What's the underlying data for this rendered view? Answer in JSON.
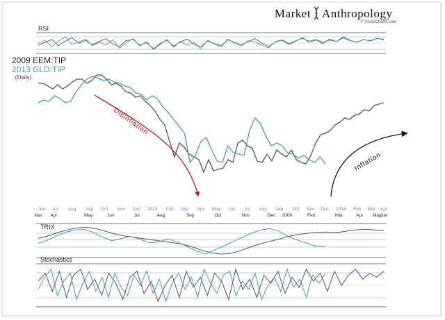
{
  "brand": {
    "left": "Market",
    "right": "Anthropology",
    "credit": "© StockCharts.com"
  },
  "colors": {
    "series_2009": "#555555",
    "series_2013": "#4a9ab8",
    "disinflation": "#b01010",
    "inflation": "#111111",
    "panel_border": "#444444"
  },
  "icons": [
    "dna-helix-icon",
    "red-curved-arrow-icon",
    "black-curved-arrow-icon"
  ],
  "chart_data": [
    {
      "type": "line",
      "panel": "price",
      "series": [
        {
          "name": "2009 EEM:TIP",
          "values": [
            0.86,
            0.86,
            0.84,
            0.82,
            0.85,
            0.82,
            0.84,
            0.87,
            0.89,
            0.89,
            0.86,
            0.88,
            0.92,
            0.92,
            0.89,
            0.85,
            0.86,
            0.84,
            0.8,
            0.79,
            0.76,
            0.77,
            0.73,
            0.7,
            0.66,
            0.6,
            0.56,
            0.44,
            0.33,
            0.43,
            0.4,
            0.35,
            0.33,
            0.31,
            0.22,
            0.31,
            0.23,
            0.24,
            0.25,
            0.31,
            0.29,
            0.43,
            0.45,
            0.41,
            0.39,
            0.3,
            0.29,
            0.35,
            0.3,
            0.38,
            0.35,
            0.33,
            0.38,
            0.31,
            0.29,
            0.28,
            0.34,
            0.43,
            0.49,
            0.5,
            0.52,
            0.56,
            0.58,
            0.61,
            0.6,
            0.63,
            0.64,
            0.67,
            0.66,
            0.7,
            0.71,
            0.72
          ]
        },
        {
          "name": "2013 GLD:TIP",
          "values": [
            0.72,
            0.74,
            0.73,
            0.77,
            0.75,
            0.72,
            0.73,
            0.8,
            0.85,
            0.89,
            0.91,
            0.9,
            0.88,
            0.89,
            0.87,
            0.86,
            0.84,
            0.83,
            0.79,
            0.78,
            0.74,
            0.77,
            0.75,
            0.69,
            0.65,
            0.6,
            0.55,
            0.5,
            0.29,
            0.34,
            0.44,
            0.47,
            0.38,
            0.3,
            0.29,
            0.41,
            0.36,
            0.35,
            0.34,
            0.52,
            0.61,
            0.57,
            0.48,
            0.41,
            0.43,
            0.41,
            0.36,
            0.35,
            0.32,
            0.34,
            0.31,
            0.29,
            0.33,
            0.28
          ]
        }
      ],
      "legend": [
        "2009 EEM:TIP",
        "2013 GLD:TIP"
      ],
      "sublabel": "(Daily)"
    },
    {
      "type": "line",
      "panel": "RSI",
      "title": "RSI",
      "series": [
        {
          "name": "2009 EEM:TIP",
          "values": [
            48,
            55,
            62,
            47,
            58,
            66,
            53,
            60,
            49,
            57,
            64,
            51,
            45,
            59,
            62,
            48,
            54,
            40,
            52,
            60,
            46,
            56,
            63,
            50,
            44,
            58,
            52,
            47,
            61,
            55,
            49,
            57,
            64,
            53,
            45,
            56,
            60,
            50,
            58,
            66,
            55,
            61,
            52,
            63,
            57,
            68,
            60,
            55,
            62,
            58,
            65,
            61
          ]
        },
        {
          "name": "2013 GLD:TIP",
          "values": [
            52,
            60,
            44,
            58,
            68,
            50,
            56,
            63,
            47,
            55,
            49,
            61,
            41,
            54,
            64,
            46,
            57,
            37,
            50,
            62,
            43,
            58,
            48,
            55,
            39,
            60,
            51,
            44,
            63,
            52,
            46,
            59,
            56,
            48,
            42,
            57,
            61,
            52,
            59,
            64,
            58,
            62,
            55,
            60,
            57,
            65,
            59,
            56,
            61,
            60,
            64,
            63
          ]
        }
      ],
      "guides": [
        30,
        50,
        70
      ]
    },
    {
      "type": "line",
      "panel": "TRIX",
      "title": "TRIX",
      "series": [
        {
          "name": "2009 EEM:TIP",
          "values": [
            0.05,
            0.12,
            0.22,
            0.3,
            0.36,
            0.38,
            0.34,
            0.26,
            0.18,
            0.12,
            0.08,
            0.04,
            0.0,
            -0.04,
            -0.08,
            -0.12,
            -0.2,
            -0.3,
            -0.38,
            -0.42,
            -0.4,
            -0.32,
            -0.22,
            -0.12,
            -0.05,
            0.02,
            0.1,
            0.16,
            0.2,
            0.22,
            0.24,
            0.22,
            0.26,
            0.3,
            0.32,
            0.3,
            0.28
          ]
        },
        {
          "name": "2013 GLD:TIP",
          "values": [
            -0.1,
            0.0,
            0.12,
            0.24,
            0.3,
            0.32,
            0.22,
            0.08,
            -0.02,
            0.05,
            0.1,
            0.02,
            -0.08,
            -0.06,
            0.04,
            -0.06,
            -0.18,
            -0.32,
            -0.42,
            -0.3,
            -0.18,
            -0.05,
            0.08,
            0.2,
            0.3,
            0.34,
            0.26,
            0.1,
            0.0,
            -0.1,
            -0.18,
            -0.2
          ]
        }
      ],
      "guides": [
        0.12,
        0.0,
        -0.12
      ]
    },
    {
      "type": "line",
      "panel": "Stochastics",
      "title": "Stochastics",
      "series": [
        {
          "name": "2009 EEM:TIP",
          "values": [
            60,
            80,
            35,
            85,
            20,
            75,
            90,
            40,
            65,
            25,
            80,
            55,
            15,
            70,
            85,
            30,
            60,
            10,
            50,
            75,
            20,
            85,
            45,
            70,
            25,
            80,
            60,
            15,
            90,
            40,
            65,
            20,
            75,
            55,
            85,
            30,
            70,
            45,
            90,
            60,
            80,
            35,
            85,
            50,
            75,
            90,
            65,
            80,
            70,
            85
          ]
        },
        {
          "name": "2013 GLD:TIP",
          "values": [
            40,
            70,
            90,
            25,
            60,
            80,
            15,
            55,
            85,
            35,
            70,
            20,
            80,
            45,
            25,
            75,
            50,
            85,
            30,
            65,
            10,
            55,
            80,
            40,
            70,
            20,
            90,
            55,
            30,
            75,
            85,
            25,
            60,
            40,
            80,
            15,
            50,
            70,
            35,
            90,
            45,
            65,
            20,
            75,
            55,
            80
          ]
        }
      ],
      "guides": [
        80,
        50,
        20
      ]
    },
    {
      "type": "axis",
      "row_2013": [
        {
          "label": "Jun",
          "x": 0.01
        },
        {
          "label": "Jul",
          "x": 0.048
        },
        {
          "label": "Aug",
          "x": 0.098
        },
        {
          "label": "Sep",
          "x": 0.148
        },
        {
          "label": "Oct",
          "x": 0.192
        },
        {
          "label": "Nov",
          "x": 0.24
        },
        {
          "label": "Dec",
          "x": 0.285
        },
        {
          "label": "2013",
          "x": 0.33
        },
        {
          "label": "Feb",
          "x": 0.38
        },
        {
          "label": "Mar",
          "x": 0.425
        },
        {
          "label": "Apr",
          "x": 0.47
        },
        {
          "label": "May",
          "x": 0.515
        },
        {
          "label": "Jun",
          "x": 0.56
        },
        {
          "label": "Jul",
          "x": 0.604
        },
        {
          "label": "Aug",
          "x": 0.65
        },
        {
          "label": "Sep",
          "x": 0.697
        },
        {
          "label": "Oct",
          "x": 0.745
        },
        {
          "label": "Nov",
          "x": 0.788
        },
        {
          "label": "Dec",
          "x": 0.83
        },
        {
          "label": "2014",
          "x": 0.876
        },
        {
          "label": "Feb",
          "x": 0.924
        },
        {
          "label": "Mar",
          "x": 0.964
        },
        {
          "label": "Apr",
          "x": 1.0
        }
      ],
      "row_2009": [
        {
          "label": "Mar",
          "x": 0.0
        },
        {
          "label": "Apr",
          "x": 0.045
        },
        {
          "label": "May",
          "x": 0.145
        },
        {
          "label": "Jun",
          "x": 0.21
        },
        {
          "label": "Jul",
          "x": 0.285
        },
        {
          "label": "Aug",
          "x": 0.355
        },
        {
          "label": "Sep",
          "x": 0.44
        },
        {
          "label": "Oct",
          "x": 0.52
        },
        {
          "label": "Nov",
          "x": 0.6
        },
        {
          "label": "Dec",
          "x": 0.675
        },
        {
          "label": "2009",
          "x": 0.72
        },
        {
          "label": "Feb",
          "x": 0.79
        },
        {
          "label": "Mar",
          "x": 0.87
        },
        {
          "label": "Apr",
          "x": 0.93
        },
        {
          "label": "May",
          "x": 0.98
        },
        {
          "label": "Jun",
          "x": 1.0
        }
      ]
    }
  ],
  "annotations": [
    {
      "text": "Disinflation",
      "color": "#b01010"
    },
    {
      "text": "Inflation",
      "color": "#111111"
    }
  ]
}
